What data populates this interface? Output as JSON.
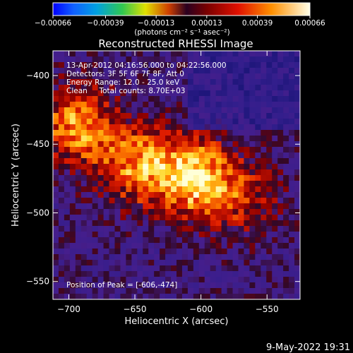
{
  "chart_data": {
    "type": "heatmap",
    "title": "Reconstructed RHESSI Image",
    "xlabel": "Heliocentric X (arcsec)",
    "ylabel": "Heliocentric Y (arcsec)",
    "xlim": [
      -712,
      -525
    ],
    "ylim": [
      -563,
      -382
    ],
    "x_ticks": [
      -700,
      -650,
      -600,
      -550
    ],
    "x_tick_labels": [
      "−700",
      "−650",
      "−600",
      "−550"
    ],
    "y_ticks": [
      -550,
      -500,
      -450,
      -400
    ],
    "y_tick_labels": [
      "−550",
      "−500",
      "−450",
      "−400"
    ],
    "colorbar": {
      "min": -0.00066,
      "max": 0.00066,
      "tick_values": [
        -0.00066,
        -0.00039,
        -0.00013,
        0.00013,
        0.00039,
        0.00066
      ],
      "tick_labels": [
        "−0.00066",
        "−0.00039",
        "−0.00013",
        "0.00013",
        "0.00039",
        "0.00066"
      ],
      "unit_label": "(photons cm⁻² s⁻¹ asec⁻²)",
      "colormap": "rainbow-to-hot"
    },
    "annotations": {
      "time_range": "13-Apr-2012 04:16:56.000 to 04:22:56.000",
      "detectors": "Detectors: 3F 5F 6F 7F 8F, Att 0",
      "energy_range": "Energy Range: 12.0 - 25.0 keV",
      "method_counts": "Clean     Total counts: 8.70E+03",
      "peak_position": "Position of Peak = [-606,-474]"
    },
    "peak": [
      -606,
      -474
    ],
    "sources": [
      {
        "x": -694,
        "y": -436,
        "relative_intensity": 0.8
      },
      {
        "x": -606,
        "y": -474,
        "relative_intensity": 1.0
      },
      {
        "x": -649,
        "y": -465,
        "relative_intensity": 0.75
      },
      {
        "x": -567,
        "y": -488,
        "relative_intensity": 0.45
      }
    ]
  },
  "footer": {
    "date": "9-May-2022 19:31"
  }
}
